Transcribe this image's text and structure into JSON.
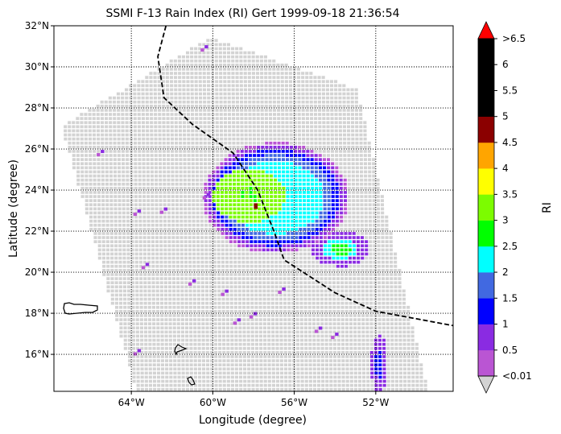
{
  "chart_data": {
    "type": "heatmap",
    "title": "SSMI F-13 Rain Index (RI) Gert 1999-09-18 21:36:54",
    "xlabel": "Longitude (degree)",
    "ylabel": "Latitude (degree)",
    "x_range_deg": [
      -67.8,
      -48.2
    ],
    "y_range_deg": [
      14.2,
      32.0
    ],
    "x_ticks": [
      {
        "value": -64,
        "label": "64°W"
      },
      {
        "value": -60,
        "label": "60°W"
      },
      {
        "value": -56,
        "label": "56°W"
      },
      {
        "value": -52,
        "label": "52°W"
      }
    ],
    "y_ticks": [
      {
        "value": 16,
        "label": "16°N"
      },
      {
        "value": 18,
        "label": "18°N"
      },
      {
        "value": 20,
        "label": "20°N"
      },
      {
        "value": 22,
        "label": "22°N"
      },
      {
        "value": 24,
        "label": "24°N"
      },
      {
        "value": 26,
        "label": "26°N"
      },
      {
        "value": 28,
        "label": "28°N"
      },
      {
        "value": 30,
        "label": "30°N"
      },
      {
        "value": 32,
        "label": "32°N"
      }
    ],
    "grid": true,
    "no_rain_color": "#d3d3d3",
    "swath_corners_deg": [
      [
        -67.5,
        27.2
      ],
      [
        -60.2,
        31.5
      ],
      [
        -53.0,
        29.0
      ],
      [
        -49.5,
        14.2
      ],
      [
        -63.8,
        14.2
      ]
    ],
    "track_deg": [
      [
        -62.3,
        32.0
      ],
      [
        -62.7,
        30.5
      ],
      [
        -62.4,
        28.5
      ],
      [
        -61.0,
        27.2
      ],
      [
        -59.0,
        25.8
      ],
      [
        -57.8,
        24.0
      ],
      [
        -57.0,
        22.0
      ],
      [
        -56.5,
        20.6
      ],
      [
        -54.0,
        19.0
      ],
      [
        -52.0,
        18.1
      ],
      [
        -48.2,
        17.4
      ]
    ],
    "center_deg": [
      -57.9,
      23.2
    ],
    "rain_features": [
      {
        "name": "ring",
        "lon": -57.0,
        "lat": 23.7,
        "rx_deg": 3.6,
        "ry_deg": 2.7
      },
      {
        "name": "eye",
        "lon": -58.3,
        "lat": 23.8,
        "rx_deg": 1.8,
        "ry_deg": 1.3
      },
      {
        "name": "southeast band",
        "lon": -53.8,
        "lat": 21.2
      },
      {
        "name": "southern cell",
        "lon": -51.9,
        "lat": 15.6
      }
    ],
    "scattered_points_deg": [
      [
        -65.7,
        25.8
      ],
      [
        -63.9,
        22.9
      ],
      [
        -62.6,
        23.0
      ],
      [
        -60.5,
        23.7
      ],
      [
        -63.5,
        20.3
      ],
      [
        -61.2,
        19.5
      ],
      [
        -59.6,
        19.0
      ],
      [
        -56.8,
        19.1
      ],
      [
        -58.2,
        17.9
      ],
      [
        -63.9,
        16.1
      ],
      [
        -59.0,
        17.6
      ],
      [
        -55.0,
        17.2
      ],
      [
        -54.2,
        16.9
      ],
      [
        -60.6,
        30.9
      ]
    ],
    "colorbar": {
      "label": "RI",
      "top_color": "#ff0000",
      "bottom_color": "#d3d3d3",
      "bins": [
        {
          "label": "<0.01",
          "color": "#ba55d3"
        },
        {
          "label": "0.5",
          "color": "#8a2be2"
        },
        {
          "label": "1",
          "color": "#0000ff"
        },
        {
          "label": "1.5",
          "color": "#4169e1"
        },
        {
          "label": "2",
          "color": "#00ffff"
        },
        {
          "label": "2.5",
          "color": "#00ff00"
        },
        {
          "label": "3",
          "color": "#7cfc00"
        },
        {
          "label": "3.5",
          "color": "#ffff00"
        },
        {
          "label": "4",
          "color": "#ffa500"
        },
        {
          "label": "4.5",
          "color": "#8b0000"
        },
        {
          "label": "5",
          "color": "#000000"
        },
        {
          "label": "5.5",
          "color": "#000000"
        },
        {
          "label": "6",
          "color": "#000000"
        }
      ],
      "top_label": ">6.5"
    }
  }
}
